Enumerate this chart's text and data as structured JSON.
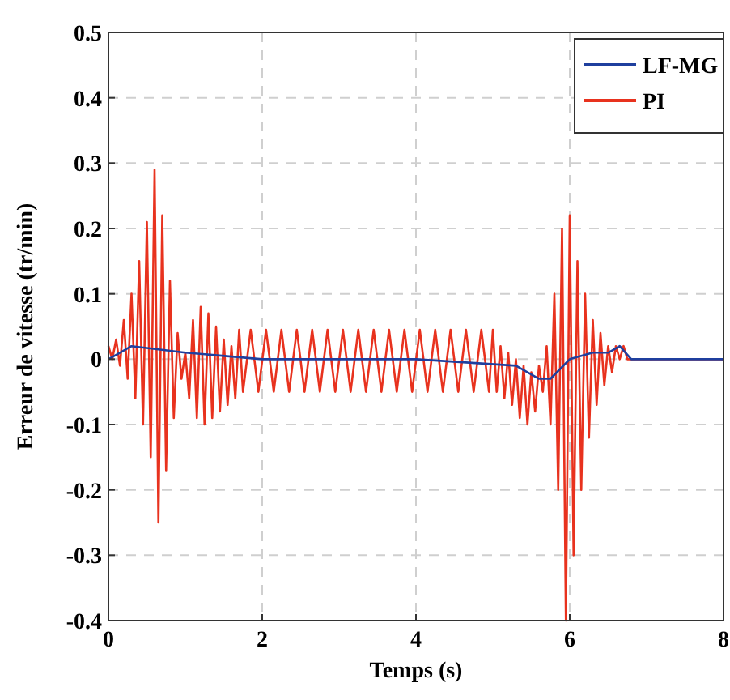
{
  "chart_data": {
    "type": "line",
    "xlabel": "Temps (s)",
    "ylabel": "Erreur de vitesse (tr/min)",
    "xlim": [
      0,
      8
    ],
    "ylim": [
      -0.4,
      0.5
    ],
    "xticks": [
      0,
      2,
      4,
      6,
      8
    ],
    "yticks": [
      -0.4,
      -0.3,
      -0.2,
      -0.1,
      0,
      0.1,
      0.2,
      0.3,
      0.4,
      0.5
    ],
    "grid": true,
    "legend": "top right",
    "marker": "none",
    "line_style": "solid",
    "series": [
      {
        "name": "PI",
        "color": "#e8321e",
        "x": [
          0,
          0.05,
          0.1,
          0.15,
          0.2,
          0.25,
          0.3,
          0.35,
          0.4,
          0.45,
          0.5,
          0.55,
          0.6,
          0.65,
          0.7,
          0.75,
          0.8,
          0.85,
          0.9,
          0.95,
          1.0,
          1.05,
          1.1,
          1.15,
          1.2,
          1.25,
          1.3,
          1.35,
          1.4,
          1.45,
          1.5,
          1.55,
          1.6,
          1.65,
          1.7,
          1.75,
          1.85,
          1.95,
          2.05,
          2.15,
          2.25,
          2.35,
          2.45,
          2.55,
          2.65,
          2.75,
          2.85,
          2.95,
          3.05,
          3.15,
          3.25,
          3.35,
          3.45,
          3.55,
          3.65,
          3.75,
          3.85,
          3.95,
          4.05,
          4.15,
          4.25,
          4.35,
          4.45,
          4.55,
          4.65,
          4.75,
          4.85,
          4.95,
          5.0,
          5.05,
          5.1,
          5.15,
          5.2,
          5.25,
          5.3,
          5.35,
          5.4,
          5.45,
          5.5,
          5.55,
          5.6,
          5.65,
          5.7,
          5.75,
          5.8,
          5.85,
          5.9,
          5.95,
          6.0,
          6.05,
          6.1,
          6.15,
          6.2,
          6.25,
          6.3,
          6.35,
          6.4,
          6.45,
          6.5,
          6.55,
          6.6,
          6.65,
          6.7,
          6.75,
          8
        ],
        "values": [
          0.02,
          0,
          0.03,
          -0.01,
          0.06,
          -0.03,
          0.1,
          -0.06,
          0.15,
          -0.1,
          0.21,
          -0.15,
          0.29,
          -0.25,
          0.22,
          -0.17,
          0.12,
          -0.09,
          0.04,
          -0.03,
          0.01,
          -0.06,
          0.06,
          -0.09,
          0.08,
          -0.1,
          0.07,
          -0.09,
          0.05,
          -0.08,
          0.03,
          -0.07,
          0.02,
          -0.06,
          0.045,
          -0.05,
          0.045,
          -0.05,
          0.045,
          -0.05,
          0.045,
          -0.05,
          0.045,
          -0.05,
          0.045,
          -0.05,
          0.045,
          -0.05,
          0.045,
          -0.05,
          0.045,
          -0.05,
          0.045,
          -0.05,
          0.045,
          -0.05,
          0.045,
          -0.05,
          0.045,
          -0.05,
          0.045,
          -0.05,
          0.045,
          -0.05,
          0.045,
          -0.05,
          0.045,
          -0.05,
          0.045,
          -0.05,
          0.02,
          -0.06,
          0.01,
          -0.07,
          0,
          -0.09,
          -0.01,
          -0.1,
          -0.02,
          -0.08,
          -0.01,
          -0.05,
          0.02,
          -0.1,
          0.1,
          -0.2,
          0.2,
          -0.4,
          0.22,
          -0.3,
          0.15,
          -0.2,
          0.1,
          -0.12,
          0.06,
          -0.07,
          0.04,
          -0.04,
          0.02,
          -0.02,
          0.02,
          0,
          0.02,
          0,
          0
        ]
      },
      {
        "name": "LF-MG",
        "color": "#1f3f9e",
        "x": [
          0,
          0.15,
          0.3,
          1,
          2,
          4,
          5.3,
          5.6,
          5.75,
          6.0,
          6.3,
          6.5,
          6.65,
          6.8,
          8
        ],
        "values": [
          0,
          0.01,
          0.02,
          0.01,
          0,
          0,
          -0.01,
          -0.03,
          -0.03,
          0,
          0.01,
          0.01,
          0.02,
          0,
          0
        ]
      }
    ]
  }
}
